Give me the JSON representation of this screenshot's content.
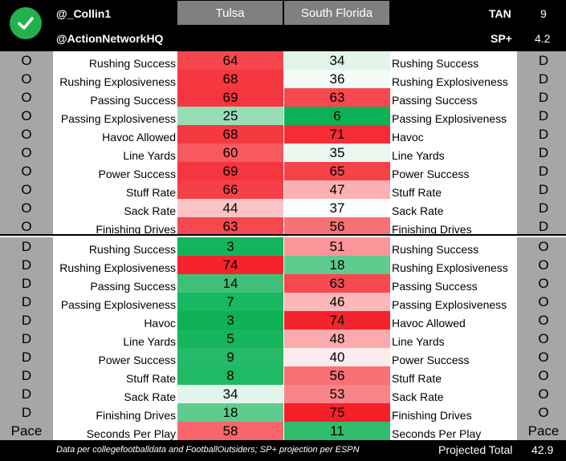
{
  "header": {
    "user_handle": "@_Collin1",
    "org_handle": "@ActionNetworkHQ",
    "team_left": "Tulsa",
    "team_right": "South Florida",
    "metric1_label": "TAN",
    "metric1_value": "9",
    "metric2_label": "SP+",
    "metric2_value": "4.2",
    "icon": "checkmark-icon"
  },
  "rows": [
    {
      "side_left": "O",
      "label_left": "Rushing Success",
      "tulsa": "64",
      "tulsa_color": "#f6474e",
      "usf": "34",
      "usf_color": "#e3f5ea",
      "label_right": "Rushing Success",
      "side_right": "D"
    },
    {
      "side_left": "O",
      "label_left": "Rushing Explosiveness",
      "tulsa": "68",
      "tulsa_color": "#f53941",
      "usf": "36",
      "usf_color": "#f3fbf6",
      "label_right": "Rushing Explosiveness",
      "side_right": "D"
    },
    {
      "side_left": "O",
      "label_left": "Passing Success",
      "tulsa": "69",
      "tulsa_color": "#f5363e",
      "usf": "63",
      "usf_color": "#f6494f",
      "label_right": "Passing Success",
      "side_right": "D"
    },
    {
      "side_left": "O",
      "label_left": "Passing Explosiveness",
      "tulsa": "25",
      "tulsa_color": "#98ddb6",
      "usf": "6",
      "usf_color": "#0cb156",
      "label_right": "Passing Explosiveness",
      "side_right": "D"
    },
    {
      "side_left": "O",
      "label_left": "Havoc Allowed",
      "tulsa": "68",
      "tulsa_color": "#f53941",
      "usf": "71",
      "usf_color": "#f52c35",
      "label_right": "Havoc",
      "side_right": "D"
    },
    {
      "side_left": "O",
      "label_left": "Line Yards",
      "tulsa": "60",
      "tulsa_color": "#f7595f",
      "usf": "35",
      "usf_color": "#ebf8f0",
      "label_right": "Line Yards",
      "side_right": "D"
    },
    {
      "side_left": "O",
      "label_left": "Power Success",
      "tulsa": "69",
      "tulsa_color": "#f5363e",
      "usf": "65",
      "usf_color": "#f64249",
      "label_right": "Power Success",
      "side_right": "D"
    },
    {
      "side_left": "O",
      "label_left": "Stuff Rate",
      "tulsa": "66",
      "tulsa_color": "#f64047",
      "usf": "47",
      "usf_color": "#fbb1b3",
      "label_right": "Stuff Rate",
      "side_right": "D"
    },
    {
      "side_left": "O",
      "label_left": "Sack Rate",
      "tulsa": "44",
      "tulsa_color": "#fcc4c6",
      "usf": "37",
      "usf_color": "#fbfdfc",
      "label_right": "Sack Rate",
      "side_right": "D"
    },
    {
      "side_left": "O",
      "label_left": "Finishing Drives",
      "tulsa": "63",
      "tulsa_color": "#f6494f",
      "usf": "56",
      "usf_color": "#f87175",
      "label_right": "Finishing Drives",
      "side_right": "D"
    },
    {
      "side_left": "D",
      "label_left": "Rushing Success",
      "tulsa": "3",
      "tulsa_color": "#13b45c",
      "usf": "51",
      "usf_color": "#fa9599",
      "label_right": "Rushing Success",
      "side_right": "O"
    },
    {
      "side_left": "D",
      "label_left": "Rushing Explosiveness",
      "tulsa": "74",
      "tulsa_color": "#f5232c",
      "usf": "18",
      "usf_color": "#5fcb8e",
      "label_right": "Rushing Explosiveness",
      "side_right": "O"
    },
    {
      "side_left": "D",
      "label_left": "Passing Success",
      "tulsa": "14",
      "tulsa_color": "#3fc078",
      "usf": "63",
      "usf_color": "#f6494f",
      "label_right": "Passing Success",
      "side_right": "O"
    },
    {
      "side_left": "D",
      "label_left": "Passing Explosiveness",
      "tulsa": "7",
      "tulsa_color": "#1ab761",
      "usf": "46",
      "usf_color": "#fbb7b9",
      "label_right": "Passing Explosiveness",
      "side_right": "O"
    },
    {
      "side_left": "D",
      "label_left": "Havoc",
      "tulsa": "3",
      "tulsa_color": "#0db156",
      "usf": "74",
      "usf_color": "#f5232c",
      "label_right": "Havoc Allowed",
      "side_right": "O"
    },
    {
      "side_left": "D",
      "label_left": "Line Yards",
      "tulsa": "5",
      "tulsa_color": "#16b55e",
      "usf": "48",
      "usf_color": "#fbaaad",
      "label_right": "Line Yards",
      "side_right": "O"
    },
    {
      "side_left": "D",
      "label_left": "Power Success",
      "tulsa": "9",
      "tulsa_color": "#26ba68",
      "usf": "40",
      "usf_color": "#fdeced",
      "label_right": "Power Success",
      "side_right": "O"
    },
    {
      "side_left": "D",
      "label_left": "Stuff Rate",
      "tulsa": "8",
      "tulsa_color": "#20b964",
      "usf": "56",
      "usf_color": "#f87175",
      "label_right": "Stuff Rate",
      "side_right": "O"
    },
    {
      "side_left": "D",
      "label_left": "Sack Rate",
      "tulsa": "34",
      "tulsa_color": "#e3f5ea",
      "usf": "53",
      "usf_color": "#f98488",
      "label_right": "Sack Rate",
      "side_right": "O"
    },
    {
      "side_left": "D",
      "label_left": "Finishing Drives",
      "tulsa": "18",
      "tulsa_color": "#5fcb8e",
      "usf": "75",
      "usf_color": "#f51f28",
      "label_right": "Finishing Drives",
      "side_right": "O"
    }
  ],
  "pace": {
    "side_left": "Pace",
    "label_left": "Seconds Per Play",
    "tulsa": "58",
    "tulsa_color": "#f8666b",
    "usf": "11",
    "usf_color": "#31bc6e",
    "label_right": "Seconds Per Play",
    "side_right": "Pace"
  },
  "footer": {
    "source_note": "Data per collegefootballdata and FootballOutsiders; SP+ projection per ESPN",
    "total_label": "Projected Total",
    "total_value": "42.9"
  }
}
